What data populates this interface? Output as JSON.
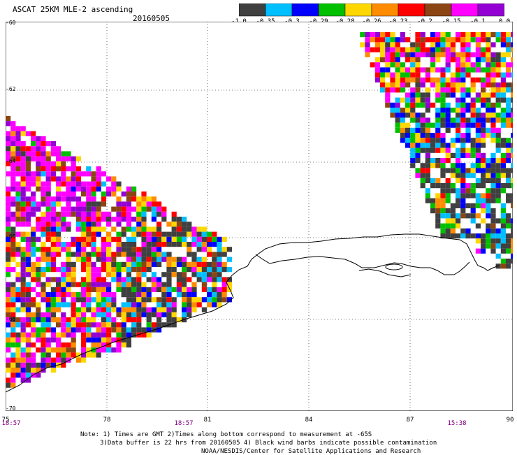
{
  "header": {
    "title": "ASCAT 25KM MLE-2 ascending",
    "date": "20160505"
  },
  "colorbar": {
    "colors": [
      "#404040",
      "#00bfff",
      "#0000ff",
      "#00c000",
      "#ffd700",
      "#ff8c00",
      "#ff0000",
      "#8b4513",
      "#ff00ff",
      "#9400d3"
    ],
    "labels": [
      "-1.0",
      "-0.35",
      "-0.3",
      "-0.29",
      "-0.28",
      "-0.26",
      "-0.23",
      "-0.2",
      "-0.15",
      "-0.1",
      "0.0"
    ]
  },
  "map": {
    "lat_labels": [
      "-60",
      "-62",
      "-64",
      "-66",
      "-68",
      "-70"
    ],
    "lon_labels": [
      "75",
      "78",
      "81",
      "84",
      "87",
      "90"
    ],
    "time_labels": [
      "18:57",
      "18:57",
      "15:38"
    ]
  },
  "notes": {
    "line1": "Note: 1) Times are GMT 2)Times along bottom correspond to measurement at -65S",
    "line2": "3)Data buffer is 22 hrs from 20160505 4) Black wind barbs indicate possible contamination",
    "line3": "NOAA/NESDIS/Center for Satellite Applications and Research"
  }
}
